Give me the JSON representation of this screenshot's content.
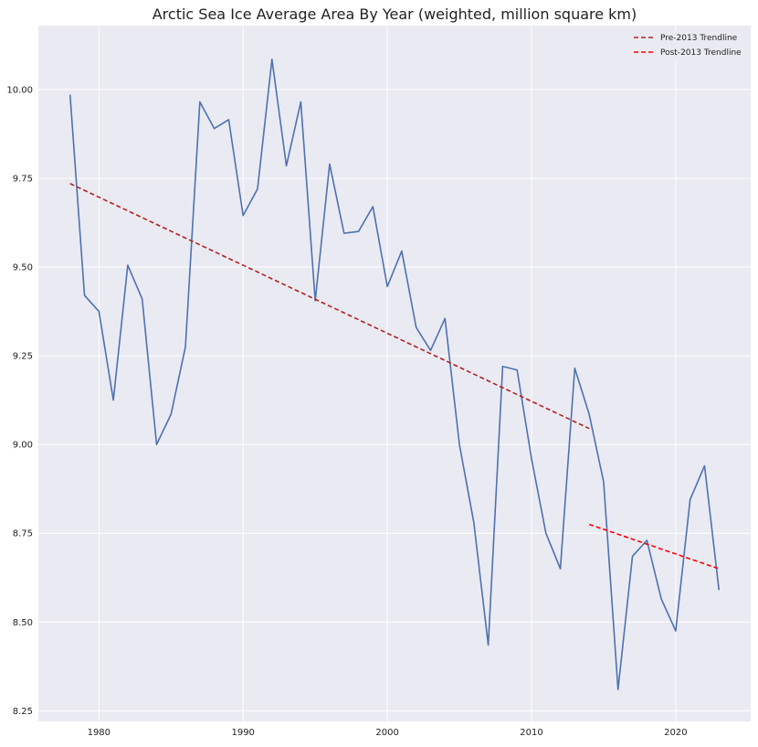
{
  "chart_data": {
    "type": "line",
    "title": "Arctic Sea Ice Average Area By Year (weighted, million square km)",
    "xlabel": "",
    "ylabel": "",
    "xlim": [
      1975.8,
      2025.2
    ],
    "ylim": [
      8.22,
      10.18
    ],
    "grid": true,
    "legend_position": "top-right",
    "x_ticks": [
      1980,
      1990,
      2000,
      2010,
      2020
    ],
    "x_tick_labels": [
      "1980",
      "1990",
      "2000",
      "2010",
      "2020"
    ],
    "y_ticks": [
      8.25,
      8.5,
      8.75,
      9.0,
      9.25,
      9.5,
      9.75,
      10.0
    ],
    "y_tick_labels": [
      "8.25",
      "8.50",
      "8.75",
      "9.00",
      "9.25",
      "9.50",
      "9.75",
      "10.00"
    ],
    "series": [
      {
        "name": "",
        "color": "#4c72b0",
        "style": "solid",
        "x": [
          1978,
          1979,
          1980,
          1981,
          1982,
          1983,
          1984,
          1985,
          1986,
          1987,
          1988,
          1989,
          1990,
          1991,
          1992,
          1993,
          1994,
          1995,
          1996,
          1997,
          1998,
          1999,
          2000,
          2001,
          2002,
          2003,
          2004,
          2005,
          2006,
          2007,
          2008,
          2009,
          2010,
          2011,
          2012,
          2013,
          2014,
          2015,
          2016,
          2017,
          2018,
          2019,
          2020,
          2021,
          2022,
          2023
        ],
        "values": [
          9.985,
          9.42,
          9.375,
          9.125,
          9.505,
          9.41,
          9.0,
          9.085,
          9.275,
          9.965,
          9.89,
          9.915,
          9.645,
          9.72,
          10.085,
          9.785,
          9.965,
          9.405,
          9.79,
          9.595,
          9.6,
          9.67,
          9.445,
          9.545,
          9.33,
          9.265,
          9.355,
          9.0,
          8.78,
          8.435,
          9.22,
          9.21,
          8.96,
          8.75,
          8.65,
          9.215,
          9.085,
          8.895,
          8.31,
          8.685,
          8.73,
          8.565,
          8.475,
          8.845,
          8.94,
          8.59
        ]
      },
      {
        "name": "Pre-2013 Trendline",
        "color": "#b22222",
        "style": "dashed",
        "x": [
          1978,
          2014
        ],
        "values": [
          9.735,
          9.045
        ]
      },
      {
        "name": "Post-2013 Trendline",
        "color": "#ff0000",
        "style": "dashed",
        "x": [
          2014,
          2023
        ],
        "values": [
          8.775,
          8.65
        ]
      }
    ]
  }
}
